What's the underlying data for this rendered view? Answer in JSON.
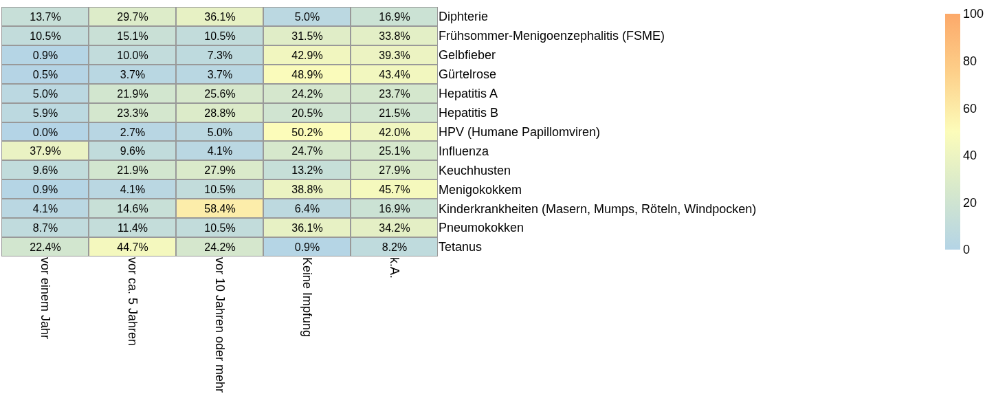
{
  "chart_data": {
    "type": "heatmap",
    "categories": [
      "vor einem Jahr",
      "vor ca. 5 Jahren",
      "vor 10 Jahren oder mehr",
      "Keine Impfung",
      "k.A."
    ],
    "y_categories": [
      "Diphterie",
      "Frühsommer-Menigoenzephalitis (FSME)",
      "Gelbfieber",
      "Gürtelrose",
      "Hepatitis A",
      "Hepatitis B",
      "HPV (Humane Papillomviren)",
      "Influenza",
      "Keuchhusten",
      "Menigokokkem",
      "Kinderkrankheiten (Masern, Mumps, Röteln, Windpocken)",
      "Pneumokokken",
      "Tetanus"
    ],
    "cells": [
      [
        13.7,
        29.7,
        36.1,
        5.0,
        16.9
      ],
      [
        10.5,
        15.1,
        10.5,
        31.5,
        33.8
      ],
      [
        0.9,
        10.0,
        7.3,
        42.9,
        39.3
      ],
      [
        0.5,
        3.7,
        3.7,
        48.9,
        43.4
      ],
      [
        5.0,
        21.9,
        25.6,
        24.2,
        23.7
      ],
      [
        5.9,
        23.3,
        28.8,
        20.5,
        21.5
      ],
      [
        0.0,
        2.7,
        5.0,
        50.2,
        42.0
      ],
      [
        37.9,
        9.6,
        4.1,
        24.7,
        25.1
      ],
      [
        9.6,
        21.9,
        27.9,
        13.2,
        27.9
      ],
      [
        0.9,
        4.1,
        10.5,
        38.8,
        45.7
      ],
      [
        4.1,
        14.6,
        58.4,
        6.4,
        16.9
      ],
      [
        8.7,
        11.4,
        10.5,
        36.1,
        34.2
      ],
      [
        22.4,
        44.7,
        24.2,
        0.9,
        8.2
      ]
    ],
    "cell_labels": [
      [
        "13.7%",
        "29.7%",
        "36.1%",
        "5.0%",
        "16.9%"
      ],
      [
        "10.5%",
        "15.1%",
        "10.5%",
        "31.5%",
        "33.8%"
      ],
      [
        "0.9%",
        "10.0%",
        "7.3%",
        "42.9%",
        "39.3%"
      ],
      [
        "0.5%",
        "3.7%",
        "3.7%",
        "48.9%",
        "43.4%"
      ],
      [
        "5.0%",
        "21.9%",
        "25.6%",
        "24.2%",
        "23.7%"
      ],
      [
        "5.9%",
        "23.3%",
        "28.8%",
        "20.5%",
        "21.5%"
      ],
      [
        "0.0%",
        "2.7%",
        "5.0%",
        "50.2%",
        "42.0%"
      ],
      [
        "37.9%",
        "9.6%",
        "4.1%",
        "24.7%",
        "25.1%"
      ],
      [
        "9.6%",
        "21.9%",
        "27.9%",
        "13.2%",
        "27.9%"
      ],
      [
        "0.9%",
        "4.1%",
        "10.5%",
        "38.8%",
        "45.7%"
      ],
      [
        "4.1%",
        "14.6%",
        "58.4%",
        "6.4%",
        "16.9%"
      ],
      [
        "8.7%",
        "11.4%",
        "10.5%",
        "36.1%",
        "34.2%"
      ],
      [
        "22.4%",
        "44.7%",
        "24.2%",
        "0.9%",
        "8.2%"
      ]
    ],
    "clim": [
      0,
      100
    ],
    "cticks": [
      0,
      20,
      40,
      60,
      80,
      100
    ]
  }
}
